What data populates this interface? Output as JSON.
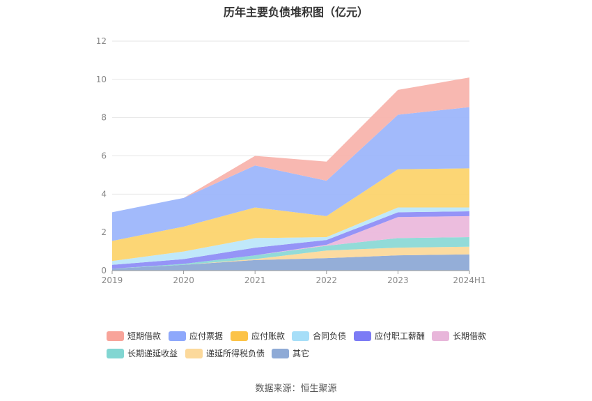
{
  "title": "历年主要负债堆积图（亿元）",
  "source": "数据来源：恒生聚源",
  "chart_data": {
    "type": "area",
    "stacked": true,
    "title": "历年主要负债堆积图（亿元）",
    "categories": [
      "2019",
      "2020",
      "2021",
      "2022",
      "2023",
      "2024H1"
    ],
    "ylim": [
      0,
      12
    ],
    "yticks": [
      0,
      2,
      4,
      6,
      8,
      10,
      12
    ],
    "grid": true,
    "legend_position": "bottom",
    "series": [
      {
        "name": "其它",
        "color": "#8eaad6",
        "values": [
          0.1,
          0.3,
          0.55,
          0.65,
          0.8,
          0.85
        ]
      },
      {
        "name": "递延所得税负债",
        "color": "#fcd99b",
        "values": [
          0.0,
          0.0,
          0.05,
          0.4,
          0.4,
          0.4
        ]
      },
      {
        "name": "长期递延收益",
        "color": "#8cd9d6",
        "values": [
          0.0,
          0.05,
          0.2,
          0.25,
          0.5,
          0.5
        ]
      },
      {
        "name": "长期借款",
        "color": "#ebb9dc",
        "values": [
          0.0,
          0.0,
          0.0,
          0.05,
          1.1,
          1.1
        ]
      },
      {
        "name": "应付职工薪酬",
        "color": "#8f8ef7",
        "values": [
          0.2,
          0.25,
          0.4,
          0.25,
          0.25,
          0.25
        ]
      },
      {
        "name": "合同负债",
        "color": "#bde7fa",
        "values": [
          0.2,
          0.4,
          0.5,
          0.15,
          0.25,
          0.2
        ]
      },
      {
        "name": "应付账款",
        "color": "#fcd46e",
        "values": [
          1.05,
          1.3,
          1.6,
          1.1,
          2.0,
          2.05
        ]
      },
      {
        "name": "应付票据",
        "color": "#9db6fb",
        "values": [
          1.5,
          1.5,
          2.2,
          1.85,
          2.85,
          3.2
        ]
      },
      {
        "name": "短期借款",
        "color": "#f8b4ad",
        "values": [
          0.0,
          0.0,
          0.5,
          1.0,
          1.3,
          1.55
        ]
      }
    ]
  },
  "legend": [
    {
      "label": "短期借款",
      "color": "#f8a49a"
    },
    {
      "label": "应付票据",
      "color": "#8ea8fb"
    },
    {
      "label": "应付账款",
      "color": "#fcc347"
    },
    {
      "label": "合同负债",
      "color": "#a6def8"
    },
    {
      "label": "应付职工薪酬",
      "color": "#7c7bf5"
    },
    {
      "label": "长期借款",
      "color": "#e8b6da"
    },
    {
      "label": "长期递延收益",
      "color": "#82d6d2"
    },
    {
      "label": "递延所得税负债",
      "color": "#fcd99b"
    },
    {
      "label": "其它",
      "color": "#8eaad6"
    }
  ]
}
